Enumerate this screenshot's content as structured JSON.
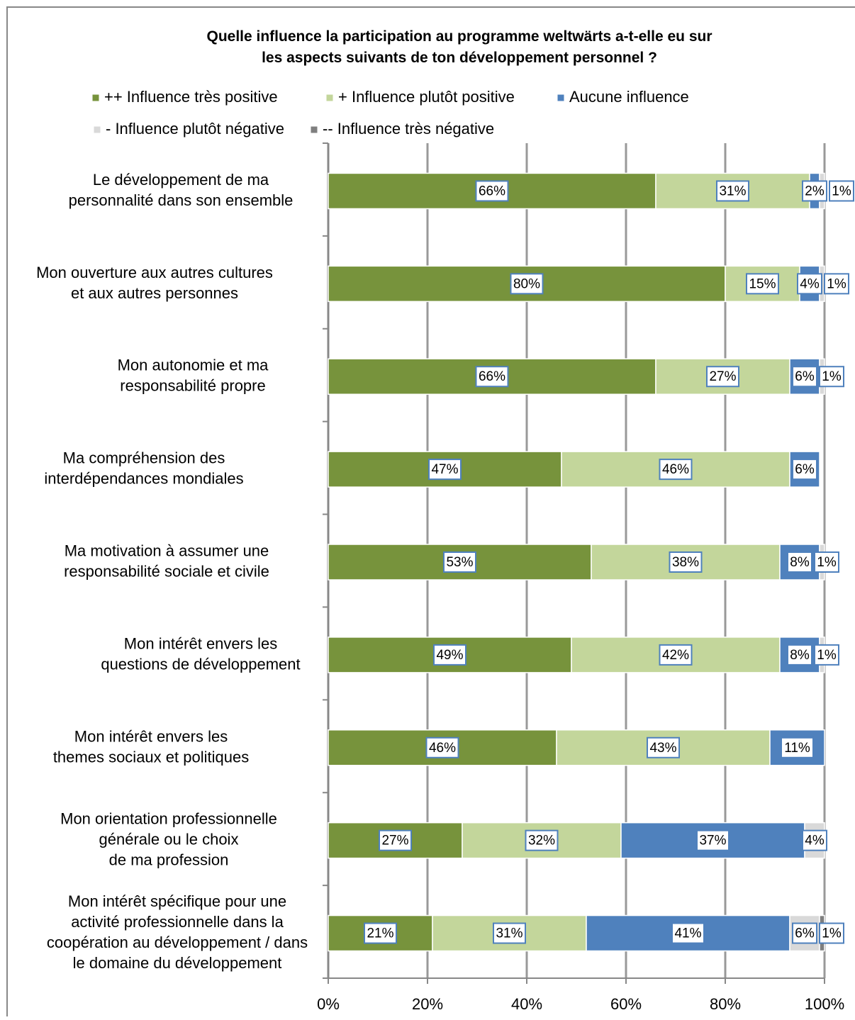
{
  "chart_data": {
    "type": "stacked-bar-horizontal",
    "title": "Quelle influence la participation au programme weltwärts a-t-elle eu sur\nles aspects suivants de ton développement personnel ?",
    "categories": [
      "Le développement de ma\npersonnalité dans son ensemble",
      "Mon ouverture aux autres cultures\net aux autres personnes",
      "Mon autonomie et ma\nresponsabilité propre",
      "Ma compréhension des\ninterdépendances mondiales",
      "Ma motivation à assumer une\nresponsabilité sociale et civile",
      "Mon intérêt envers les\nquestions de développement",
      "Mon intérêt envers les\nthemes sociaux et politiques",
      "Mon orientation professionnelle\ngénérale ou le choix\nde ma profession",
      "Mon intérêt spécifique pour une\nactivité professionnelle dans la\ncoopération au développement / dans\nle domaine du développement"
    ],
    "series": [
      {
        "name": "++ Influence très positive",
        "color": "#77933c",
        "values": [
          66,
          80,
          66,
          47,
          53,
          49,
          46,
          27,
          21
        ],
        "value_labels": [
          "66%",
          "80%",
          "66%",
          "47%",
          "53%",
          "49%",
          "46%",
          "27%",
          "21%"
        ]
      },
      {
        "name": "+ Influence plutôt positive",
        "color": "#c3d69b",
        "values": [
          31,
          15,
          27,
          46,
          38,
          42,
          43,
          32,
          31
        ],
        "value_labels": [
          "31%",
          "15%",
          "27%",
          "46%",
          "38%",
          "42%",
          "43%",
          "32%",
          "31%"
        ]
      },
      {
        "name": "Aucune influence",
        "color": "#4f81bd",
        "values": [
          2,
          4,
          6,
          6,
          8,
          8,
          11,
          37,
          41
        ],
        "value_labels": [
          "2%",
          "4%",
          "6%",
          "6%",
          "8%",
          "8%",
          "11%",
          "37%",
          "41%"
        ]
      },
      {
        "name": "- Influence plutôt négative",
        "color": "#d9d9d9",
        "values": [
          1,
          1,
          1,
          null,
          1,
          1,
          null,
          4,
          6
        ],
        "value_labels": [
          "1%",
          "1%",
          "1%",
          null,
          "1%",
          "1%",
          null,
          "4%",
          "6%"
        ]
      },
      {
        "name": "-- Influence très négative",
        "color": "#7f7f7f",
        "values": [
          null,
          null,
          null,
          null,
          null,
          null,
          null,
          null,
          1
        ],
        "value_labels": [
          null,
          null,
          null,
          null,
          null,
          null,
          null,
          null,
          "1%"
        ]
      }
    ],
    "xlim": [
      0,
      100
    ],
    "xticks": [
      {
        "value": 0,
        "label": "0%"
      },
      {
        "value": 20,
        "label": "20%"
      },
      {
        "value": 40,
        "label": "40%"
      },
      {
        "value": 60,
        "label": "60%"
      },
      {
        "value": 80,
        "label": "80%"
      },
      {
        "value": 100,
        "label": "100%"
      }
    ],
    "grid": true,
    "legend": "top"
  }
}
